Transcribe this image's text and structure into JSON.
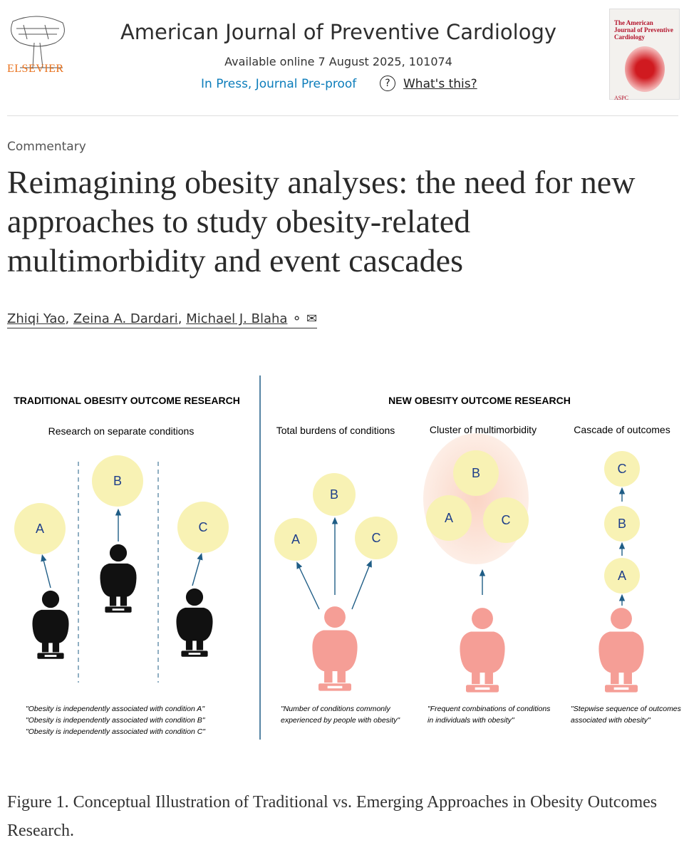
{
  "header": {
    "publisher": "ELSEVIER",
    "journal": "American Journal of Preventive Cardiology",
    "availability": "Available online 7 August 2025, 101074",
    "status": "In Press, Journal Pre-proof",
    "help_icon": "question-circle-icon",
    "help_link": "What's this?",
    "cover": {
      "title": "The American Journal of Preventive Cardiology",
      "badge": "ASPC"
    }
  },
  "article": {
    "type": "Commentary",
    "title": "Reimagining obesity analyses: the need for new approaches to study obesity-related multimorbidity and event cascades",
    "authors": [
      "Zhiqi Yao",
      "Zeina A. Dardari",
      "Michael J. Blaha"
    ],
    "author_icons": [
      "person-icon",
      "envelope-icon"
    ]
  },
  "figure": {
    "traditional": {
      "heading": "TRADITIONAL OBESITY OUTCOME RESEARCH",
      "sub": "Research on separate conditions",
      "quotes": [
        "\"Obesity is independently associated with condition A\"",
        "\"Obesity is independently associated with condition B\"",
        "\"Obesity is independently associated with condition C\""
      ]
    },
    "new": {
      "heading": "NEW OBESITY OUTCOME RESEARCH",
      "panels": [
        {
          "sub": "Total burdens of conditions",
          "quote": [
            "\"Number of conditions commonly",
            "experienced by people with obesity\""
          ]
        },
        {
          "sub": "Cluster of multimorbidity",
          "quote": [
            "\"Frequent combinations of conditions",
            "in individuals with obesity\""
          ]
        },
        {
          "sub": "Cascade of outcomes",
          "quote": [
            "\"Stepwise sequence of outcomes",
            "associated with obesity\""
          ]
        }
      ]
    },
    "labels": {
      "a": "A",
      "b": "B",
      "c": "C"
    },
    "colors": {
      "circle": "#f8f2b4",
      "pink": "#f59e96",
      "arrow": "#1f5d86",
      "text": "#1f3f8a"
    },
    "caption": "Figure 1. Conceptual Illustration of Traditional vs. Emerging Approaches in Obesity Outcomes Research."
  }
}
